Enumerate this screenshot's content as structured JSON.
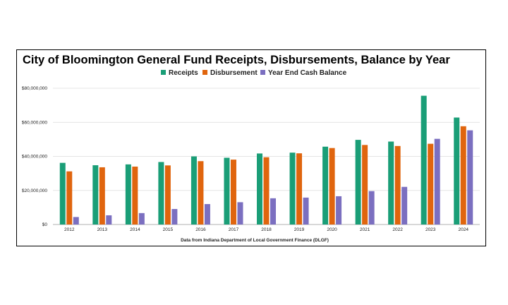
{
  "chart_data": {
    "type": "bar",
    "title": "City of Bloomington General Fund Receipts, Disbursements, Balance by Year",
    "source": "Data from Indiana Department of Local Government Finance (DLGF)",
    "categories": [
      "2012",
      "2013",
      "2014",
      "2015",
      "2016",
      "2017",
      "2018",
      "2019",
      "2020",
      "2021",
      "2022",
      "2023",
      "2024"
    ],
    "series": [
      {
        "name": "Receipts",
        "color": "#1a9e77",
        "values": [
          36200000,
          34800000,
          35300000,
          36700000,
          40000000,
          39200000,
          41700000,
          42200000,
          45700000,
          49700000,
          48700000,
          75600000,
          62800000
        ]
      },
      {
        "name": "Disbursement",
        "color": "#e0650e",
        "values": [
          31200000,
          33600000,
          34000000,
          34700000,
          37200000,
          38100000,
          39500000,
          41800000,
          44900000,
          46700000,
          46100000,
          47400000,
          57700000
        ]
      },
      {
        "name": "Year End Cash Balance",
        "color": "#7b6fc0",
        "values": [
          4400000,
          5400000,
          6700000,
          9100000,
          12000000,
          13100000,
          15400000,
          15800000,
          16600000,
          19600000,
          22100000,
          50300000,
          55300000
        ]
      }
    ],
    "ylim": [
      0,
      80000000
    ],
    "yticks": [
      "$0",
      "$20,000,000",
      "$40,000,000",
      "$60,000,000",
      "$80,000,000"
    ],
    "ytick_values": [
      0,
      20000000,
      40000000,
      60000000,
      80000000
    ],
    "xlabel": "",
    "ylabel": "",
    "grid": true,
    "legend_position": "top"
  }
}
